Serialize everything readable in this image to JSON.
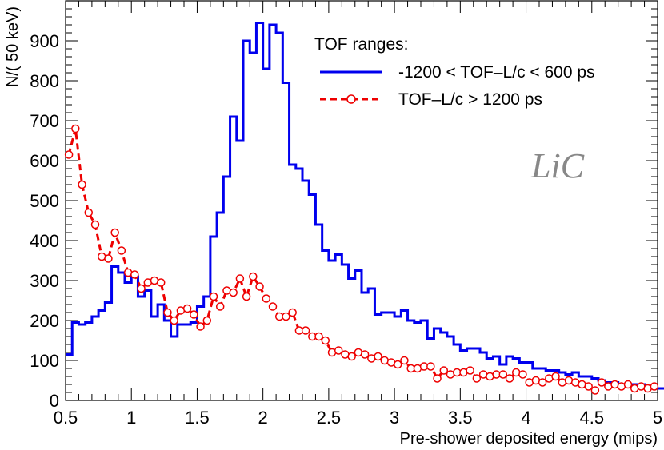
{
  "chart_data": {
    "type": "line",
    "xlabel": "Pre-shower deposited energy (mips)",
    "ylabel": "N/( 50 keV)",
    "xlim": [
      0.5,
      5.0
    ],
    "ylim": [
      0,
      1000
    ],
    "x_ticks": [
      "0.5",
      "1",
      "1.5",
      "2",
      "2.5",
      "3",
      "3.5",
      "4",
      "4.5",
      "5"
    ],
    "y_ticks": [
      "0",
      "100",
      "200",
      "300",
      "400",
      "500",
      "600",
      "700",
      "800",
      "900"
    ],
    "legend_title": "TOF ranges:",
    "legend_position": "top-right",
    "annotation": "LiC",
    "grid": false,
    "bin_width": 0.05,
    "series": [
      {
        "name": "-1200 < TOF–L/c < 600 ps",
        "style": "step",
        "color": "#0000ee",
        "x_start": 0.5,
        "values": [
          115,
          195,
          190,
          195,
          210,
          225,
          245,
          335,
          320,
          295,
          310,
          260,
          275,
          210,
          240,
          200,
          160,
          190,
          190,
          195,
          235,
          260,
          410,
          470,
          560,
          710,
          650,
          900,
          870,
          945,
          830,
          940,
          920,
          795,
          590,
          580,
          550,
          515,
          440,
          375,
          350,
          365,
          340,
          305,
          325,
          270,
          280,
          215,
          220,
          220,
          210,
          225,
          200,
          195,
          200,
          155,
          180,
          170,
          160,
          140,
          125,
          130,
          130,
          120,
          105,
          110,
          90,
          110,
          105,
          95,
          95,
          80,
          80,
          75,
          75,
          70,
          65,
          70,
          60,
          60,
          55,
          50,
          45,
          45,
          40,
          40,
          40,
          40,
          35,
          30,
          30
        ]
      },
      {
        "name": "TOF–L/c > 1200 ps",
        "style": "markers-dashed",
        "color": "#ee0000",
        "x": [
          0.525,
          0.575,
          0.625,
          0.675,
          0.725,
          0.775,
          0.825,
          0.875,
          0.925,
          0.975,
          1.025,
          1.075,
          1.125,
          1.175,
          1.225,
          1.275,
          1.325,
          1.375,
          1.425,
          1.475,
          1.525,
          1.575,
          1.625,
          1.675,
          1.725,
          1.775,
          1.825,
          1.875,
          1.925,
          1.975,
          2.025,
          2.075,
          2.125,
          2.175,
          2.225,
          2.275,
          2.325,
          2.375,
          2.425,
          2.475,
          2.525,
          2.575,
          2.625,
          2.675,
          2.725,
          2.775,
          2.825,
          2.875,
          2.925,
          2.975,
          3.025,
          3.075,
          3.125,
          3.175,
          3.225,
          3.275,
          3.325,
          3.375,
          3.425,
          3.475,
          3.525,
          3.575,
          3.625,
          3.675,
          3.725,
          3.775,
          3.825,
          3.875,
          3.925,
          3.975,
          4.025,
          4.075,
          4.125,
          4.175,
          4.225,
          4.275,
          4.325,
          4.375,
          4.425,
          4.475,
          4.525,
          4.575,
          4.625,
          4.675,
          4.725,
          4.775,
          4.825,
          4.875,
          4.925,
          4.975
        ],
        "values": [
          615,
          680,
          540,
          470,
          440,
          360,
          355,
          420,
          375,
          320,
          315,
          280,
          295,
          300,
          295,
          220,
          200,
          225,
          230,
          215,
          185,
          200,
          260,
          235,
          275,
          270,
          305,
          260,
          310,
          285,
          255,
          235,
          210,
          210,
          220,
          175,
          175,
          160,
          160,
          150,
          120,
          125,
          115,
          110,
          120,
          115,
          105,
          110,
          100,
          95,
          90,
          100,
          80,
          80,
          85,
          85,
          55,
          75,
          65,
          70,
          70,
          75,
          55,
          65,
          60,
          65,
          65,
          55,
          70,
          65,
          45,
          50,
          45,
          55,
          60,
          45,
          50,
          45,
          40,
          35,
          25,
          45,
          35,
          40,
          35,
          40,
          30,
          35,
          30,
          35
        ]
      }
    ]
  }
}
